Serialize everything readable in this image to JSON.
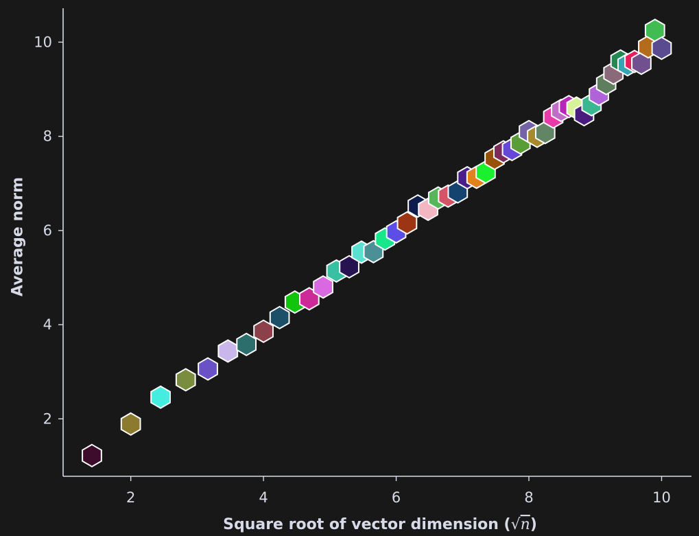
{
  "chart_data": {
    "type": "scatter",
    "title": "",
    "xlabel": {
      "prefix": "Square root of vector dimension (",
      "radical": "√",
      "var": "n",
      "suffix": ")"
    },
    "ylabel": "Average norm",
    "xlim": [
      0.98,
      10.45
    ],
    "ylim": [
      0.78,
      10.72
    ],
    "x_ticks": [
      2,
      4,
      6,
      8,
      10
    ],
    "y_ticks": [
      2,
      4,
      6,
      8,
      10
    ],
    "x_tick_labels": [
      "2",
      "4",
      "6",
      "8",
      "10"
    ],
    "y_tick_labels": [
      "2",
      "4",
      "6",
      "8",
      "10"
    ],
    "grid": false,
    "marker": "hexagon",
    "marker_edge_color": "#ffffff",
    "background": "#181818",
    "axis_color": "#d7dbe8",
    "points": [
      {
        "x": 1.414,
        "y": 1.22,
        "color": "#3d0b2b"
      },
      {
        "x": 2.0,
        "y": 1.89,
        "color": "#8c7a2e"
      },
      {
        "x": 2.449,
        "y": 2.46,
        "color": "#45ece0"
      },
      {
        "x": 2.828,
        "y": 2.83,
        "color": "#7a8c3e"
      },
      {
        "x": 3.162,
        "y": 3.06,
        "color": "#6a52c6"
      },
      {
        "x": 3.464,
        "y": 3.44,
        "color": "#c9b6ea"
      },
      {
        "x": 3.742,
        "y": 3.58,
        "color": "#2c6e6b"
      },
      {
        "x": 4.0,
        "y": 3.86,
        "color": "#8c4049"
      },
      {
        "x": 4.243,
        "y": 4.15,
        "color": "#1c5068"
      },
      {
        "x": 4.472,
        "y": 4.48,
        "color": "#13c40c"
      },
      {
        "x": 4.69,
        "y": 4.55,
        "color": "#cc2a99"
      },
      {
        "x": 4.899,
        "y": 4.8,
        "color": "#d869e0"
      },
      {
        "x": 5.099,
        "y": 5.14,
        "color": "#39bfa1"
      },
      {
        "x": 5.292,
        "y": 5.23,
        "color": "#26134f"
      },
      {
        "x": 5.477,
        "y": 5.54,
        "color": "#59e0d1"
      },
      {
        "x": 5.657,
        "y": 5.55,
        "color": "#4c9097"
      },
      {
        "x": 5.831,
        "y": 5.82,
        "color": "#17e68b"
      },
      {
        "x": 6.0,
        "y": 5.97,
        "color": "#5b4de6"
      },
      {
        "x": 6.164,
        "y": 6.16,
        "color": "#9c3514"
      },
      {
        "x": 6.325,
        "y": 6.52,
        "color": "#0f1d4e"
      },
      {
        "x": 6.481,
        "y": 6.45,
        "color": "#f3b7c4"
      },
      {
        "x": 6.633,
        "y": 6.69,
        "color": "#55b65b"
      },
      {
        "x": 6.782,
        "y": 6.73,
        "color": "#d65468"
      },
      {
        "x": 6.928,
        "y": 6.82,
        "color": "#144370"
      },
      {
        "x": 7.071,
        "y": 7.12,
        "color": "#4b1c8c"
      },
      {
        "x": 7.211,
        "y": 7.13,
        "color": "#e3821c"
      },
      {
        "x": 7.348,
        "y": 7.24,
        "color": "#1bf02e"
      },
      {
        "x": 7.483,
        "y": 7.53,
        "color": "#99500a"
      },
      {
        "x": 7.616,
        "y": 7.67,
        "color": "#7c2a5a"
      },
      {
        "x": 7.746,
        "y": 7.72,
        "color": "#6548d8"
      },
      {
        "x": 7.874,
        "y": 7.86,
        "color": "#5a9c35"
      },
      {
        "x": 8.0,
        "y": 8.1,
        "color": "#7463a7"
      },
      {
        "x": 8.124,
        "y": 8.0,
        "color": "#a78a2c"
      },
      {
        "x": 8.246,
        "y": 8.08,
        "color": "#628665"
      },
      {
        "x": 8.367,
        "y": 8.41,
        "color": "#e83aa8"
      },
      {
        "x": 8.485,
        "y": 8.55,
        "color": "#c06dc7"
      },
      {
        "x": 8.602,
        "y": 8.63,
        "color": "#b826b9"
      },
      {
        "x": 8.718,
        "y": 8.6,
        "color": "#d7f39a"
      },
      {
        "x": 8.832,
        "y": 8.46,
        "color": "#4a1b7e"
      },
      {
        "x": 8.944,
        "y": 8.67,
        "color": "#3ab690"
      },
      {
        "x": 9.055,
        "y": 8.89,
        "color": "#b062d9"
      },
      {
        "x": 9.165,
        "y": 9.12,
        "color": "#5e7e5d"
      },
      {
        "x": 9.274,
        "y": 9.34,
        "color": "#8a6a79"
      },
      {
        "x": 9.381,
        "y": 9.6,
        "color": "#258752"
      },
      {
        "x": 9.487,
        "y": 9.52,
        "color": "#37a4b1"
      },
      {
        "x": 9.592,
        "y": 9.59,
        "color": "#e51e5c"
      },
      {
        "x": 9.695,
        "y": 9.55,
        "color": "#71508f"
      },
      {
        "x": 9.798,
        "y": 9.9,
        "color": "#b46b1c"
      },
      {
        "x": 9.9,
        "y": 10.25,
        "color": "#40bc52"
      },
      {
        "x": 10.0,
        "y": 9.87,
        "color": "#5a4a8f"
      }
    ]
  }
}
